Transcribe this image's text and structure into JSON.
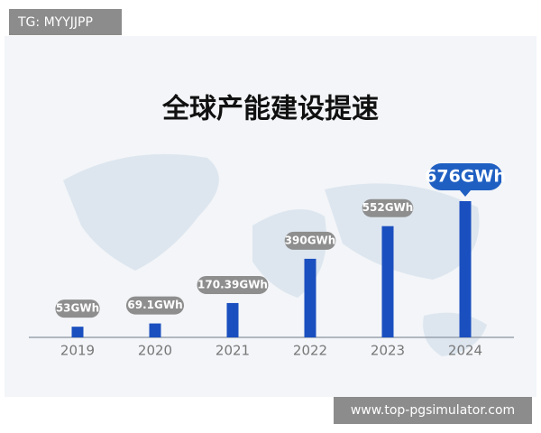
{
  "chart_data": {
    "type": "bar",
    "title": "全球产能建设提速",
    "categories": [
      "2019",
      "2020",
      "2021",
      "2022",
      "2023",
      "2024"
    ],
    "values": [
      53,
      69.1,
      170.39,
      390,
      552,
      676
    ],
    "value_labels": [
      "53GWh",
      "69.1GWh",
      "170.39GWh",
      "390GWh",
      "552GWh",
      "676GWh"
    ],
    "color": "#1a4fbf"
  },
  "watermarks": {
    "top_left": "TG: MYYJJPP",
    "bottom_right": "www.top-pgsimulator.com"
  }
}
